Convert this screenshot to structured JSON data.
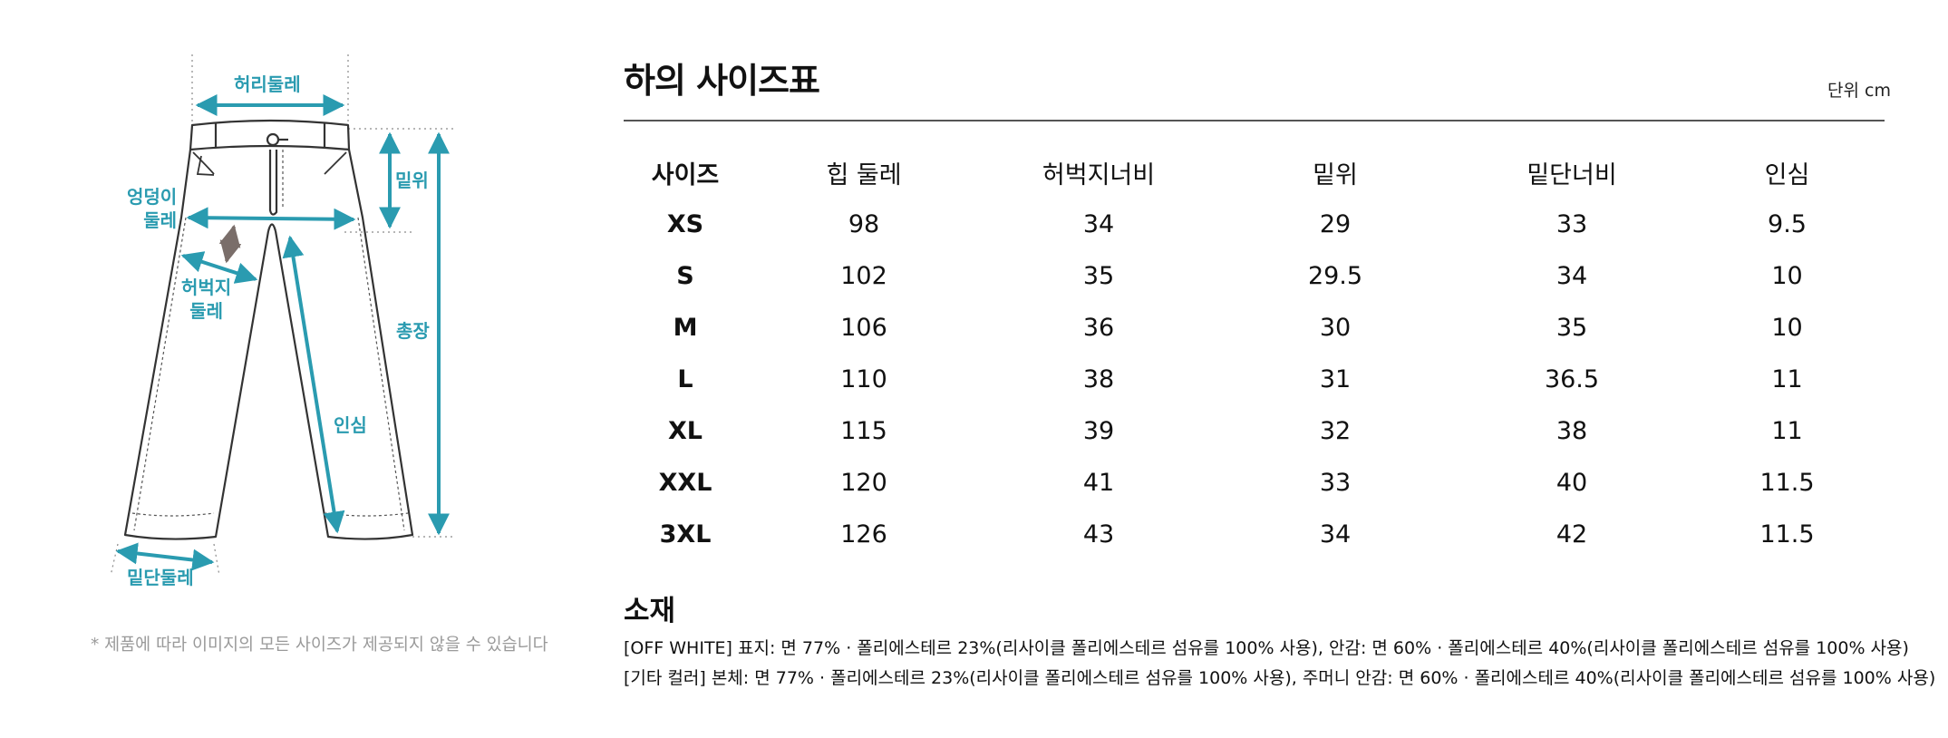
{
  "diagram": {
    "labels": {
      "waist": "허리둘레",
      "hip_line1": "엉덩이",
      "hip_line2": "둘레",
      "rise": "밑위",
      "thigh_line1": "허벅지",
      "thigh_line2": "둘레",
      "length": "총장",
      "inseam": "인심",
      "hem": "밑단둘레"
    },
    "note": "* 제품에 따라 이미지의 모든 사이즈가 제공되지 않을 수 있습니다",
    "colors": {
      "accent": "#2a9bb0",
      "arrow_alt": "#7a6e6a",
      "line": "#333333"
    }
  },
  "page": {
    "title": "하의 사이즈표",
    "unit": "단위 cm"
  },
  "table": {
    "headers": [
      "사이즈",
      "힙 둘레",
      "허벅지너비",
      "밑위",
      "밑단너비",
      "인심"
    ],
    "rows": [
      [
        "XS",
        "98",
        "34",
        "29",
        "33",
        "9.5"
      ],
      [
        "S",
        "102",
        "35",
        "29.5",
        "34",
        "10"
      ],
      [
        "M",
        "106",
        "36",
        "30",
        "35",
        "10"
      ],
      [
        "L",
        "110",
        "38",
        "31",
        "36.5",
        "11"
      ],
      [
        "XL",
        "115",
        "39",
        "32",
        "38",
        "11"
      ],
      [
        "XXL",
        "120",
        "41",
        "33",
        "40",
        "11.5"
      ],
      [
        "3XL",
        "126",
        "43",
        "34",
        "42",
        "11.5"
      ]
    ]
  },
  "material": {
    "title": "소재",
    "lines": [
      "[OFF WHITE] 표지: 면 77% · 폴리에스테르 23%(리사이클 폴리에스테르 섬유를 100% 사용), 안감: 면 60% · 폴리에스테르 40%(리사이클 폴리에스테르 섬유를 100% 사용)",
      "[기타 컬러] 본체: 면 77% · 폴리에스테르 23%(리사이클 폴리에스테르 섬유를 100% 사용), 주머니 안감: 면 60% · 폴리에스테르 40%(리사이클 폴리에스테르 섬유를 100% 사용)"
    ]
  }
}
